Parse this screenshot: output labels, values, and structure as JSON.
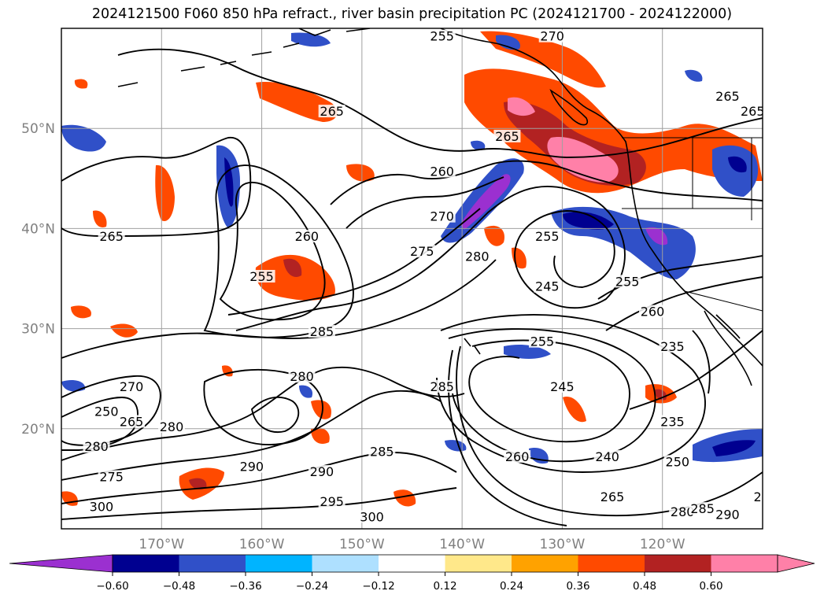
{
  "title": "2024121500 F060 850 hPa refract., river basin precipitation PC (2024121700 - 2024122000)",
  "map": {
    "lon_range": [
      -180,
      -110
    ],
    "lat_range": [
      10,
      60
    ],
    "lat_labels": [
      {
        "lat": 50,
        "text": "50°N"
      },
      {
        "lat": 40,
        "text": "40°N"
      },
      {
        "lat": 30,
        "text": "30°N"
      },
      {
        "lat": 20,
        "text": "20°N"
      }
    ],
    "lon_labels": [
      {
        "lon": -170,
        "text": "170°W"
      },
      {
        "lon": -160,
        "text": "160°W"
      },
      {
        "lon": -150,
        "text": "150°W"
      },
      {
        "lon": -140,
        "text": "140°W"
      },
      {
        "lon": -130,
        "text": "130°W"
      },
      {
        "lon": -120,
        "text": "120°W"
      }
    ],
    "contour_labels": [
      {
        "text": "265",
        "lon": -153,
        "lat": 51.5
      },
      {
        "text": "265",
        "lon": -175,
        "lat": 39
      },
      {
        "text": "265",
        "lon": -135.5,
        "lat": 49
      },
      {
        "text": "265",
        "lon": -113.5,
        "lat": 53
      },
      {
        "text": "265",
        "lon": -111,
        "lat": 51.5
      },
      {
        "text": "255",
        "lon": -142,
        "lat": 59
      },
      {
        "text": "270",
        "lon": -131,
        "lat": 59
      },
      {
        "text": "260",
        "lon": -142,
        "lat": 45.5
      },
      {
        "text": "270",
        "lon": -142,
        "lat": 41
      },
      {
        "text": "275",
        "lon": -144,
        "lat": 37.5
      },
      {
        "text": "280",
        "lon": -138.5,
        "lat": 37
      },
      {
        "text": "260",
        "lon": -155.5,
        "lat": 39
      },
      {
        "text": "255",
        "lon": -160,
        "lat": 35
      },
      {
        "text": "255",
        "lon": -131.5,
        "lat": 39
      },
      {
        "text": "245",
        "lon": -131.5,
        "lat": 34
      },
      {
        "text": "255",
        "lon": -123.5,
        "lat": 34.5
      },
      {
        "text": "260",
        "lon": -121,
        "lat": 31.5
      },
      {
        "text": "235",
        "lon": -119,
        "lat": 28
      },
      {
        "text": "285",
        "lon": -154,
        "lat": 29.5
      },
      {
        "text": "255",
        "lon": -132,
        "lat": 28.5
      },
      {
        "text": "280",
        "lon": -156,
        "lat": 25
      },
      {
        "text": "285",
        "lon": -142,
        "lat": 24
      },
      {
        "text": "245",
        "lon": -130,
        "lat": 24
      },
      {
        "text": "270",
        "lon": -173,
        "lat": 24
      },
      {
        "text": "265",
        "lon": -173,
        "lat": 20.5
      },
      {
        "text": "280",
        "lon": -169,
        "lat": 20
      },
      {
        "text": "250",
        "lon": -175.5,
        "lat": 21.5
      },
      {
        "text": "280",
        "lon": -176.5,
        "lat": 18
      },
      {
        "text": "275",
        "lon": -175,
        "lat": 15
      },
      {
        "text": "300",
        "lon": -176,
        "lat": 12
      },
      {
        "text": "290",
        "lon": -161,
        "lat": 16
      },
      {
        "text": "290",
        "lon": -154,
        "lat": 15.5
      },
      {
        "text": "285",
        "lon": -148,
        "lat": 17.5
      },
      {
        "text": "295",
        "lon": -153,
        "lat": 12.5
      },
      {
        "text": "300",
        "lon": -149,
        "lat": 11
      },
      {
        "text": "260",
        "lon": -134.5,
        "lat": 17
      },
      {
        "text": "240",
        "lon": -125.5,
        "lat": 17
      },
      {
        "text": "250",
        "lon": -118.5,
        "lat": 16.5
      },
      {
        "text": "235",
        "lon": -119,
        "lat": 20.5
      },
      {
        "text": "265",
        "lon": -125,
        "lat": 13
      },
      {
        "text": "280",
        "lon": -118,
        "lat": 11.5
      },
      {
        "text": "285",
        "lon": -116,
        "lat": 11.8
      },
      {
        "text": "290",
        "lon": -113.5,
        "lat": 11.2
      },
      {
        "text": "2",
        "lon": -110.5,
        "lat": 13
      }
    ]
  },
  "colorbar": {
    "ticks": [
      "−0.60",
      "−0.48",
      "−0.36",
      "−0.24",
      "−0.12",
      "0.12",
      "0.24",
      "0.36",
      "0.48",
      "0.60"
    ],
    "colors": {
      "under": "#9b30d0",
      "bins": [
        "#000090",
        "#3050c8",
        "#00b4ff",
        "#aee0ff",
        "#ffffff",
        "#ffe88a",
        "#ffa200",
        "#ff4a00",
        "#b22222",
        "#ff80a8"
      ],
      "over": "#ff80a8"
    }
  }
}
